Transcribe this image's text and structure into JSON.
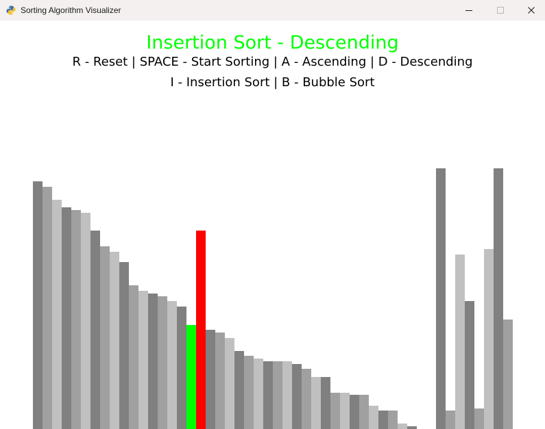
{
  "window": {
    "title": "Sorting Algorithm Visualizer",
    "app_icon": "pygame-snake-icon",
    "controls": {
      "minimize_icon": "minimize-icon",
      "maximize_icon": "maximize-icon",
      "close_icon": "close-icon"
    }
  },
  "header": {
    "title": "Insertion Sort - Descending",
    "title_color": "#00ff00",
    "help_line_1": "R - Reset | SPACE - Start Sorting | A - Ascending | D - Descending",
    "help_line_2": "I - Insertion Sort | B - Bubble Sort"
  },
  "colors": {
    "shades": [
      "#808080",
      "#a0a0a0",
      "#c0c0c0"
    ],
    "compare_green": "#00ff00",
    "compare_red": "#ff0000",
    "background": "#ffffff"
  },
  "chart_data": {
    "type": "bar",
    "title": "Insertion Sort - Descending",
    "max_value": 100,
    "values": [
      95,
      93,
      88,
      85,
      84,
      83,
      76,
      70,
      68,
      64,
      55,
      53,
      52,
      51,
      49,
      47,
      40,
      76,
      38,
      37,
      35,
      30,
      28,
      27,
      26,
      26,
      26,
      25,
      23,
      20,
      20,
      14,
      14,
      13,
      13,
      9,
      7,
      7,
      2,
      1,
      0,
      0,
      100,
      7,
      67,
      49,
      8,
      69,
      100,
      42
    ],
    "highlight": {
      "green_index": 16,
      "red_index": 17
    }
  }
}
